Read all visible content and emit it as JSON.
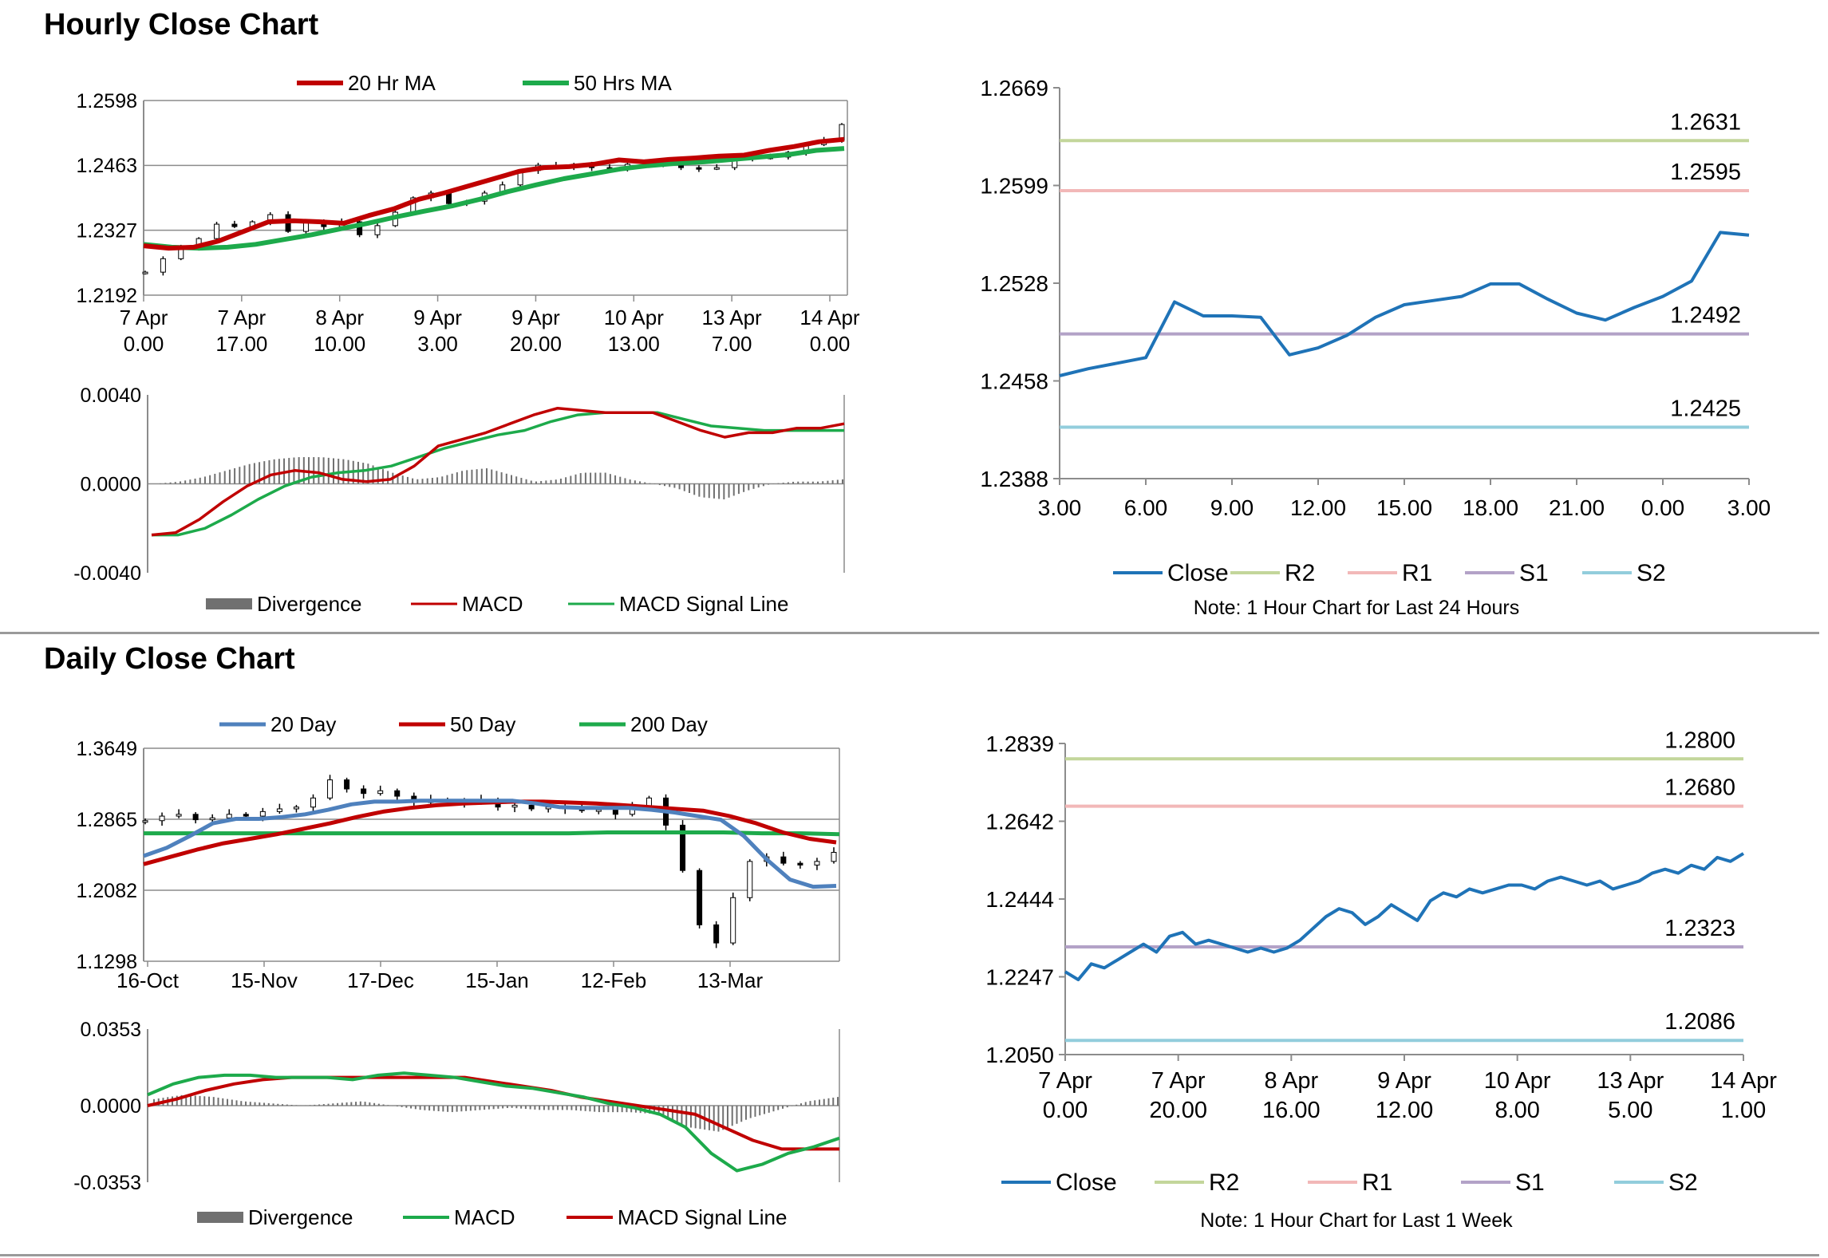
{
  "sections": {
    "hourly_title": "Hourly Close Chart",
    "daily_title": "Daily Close Chart"
  },
  "colors": {
    "red": "#c00000",
    "green": "#1daa4b",
    "blue": "#4f81bd",
    "close": "#1f73b7",
    "r2": "#c3d69b",
    "r1": "#f2b8b8",
    "s1": "#b3a2c7",
    "s2": "#92cddc",
    "divergence": "#707070",
    "grid": "#8c8c8c"
  },
  "chart_data": [
    {
      "id": "hourly_price",
      "type": "line",
      "legend": [
        {
          "name": "20 Hr MA",
          "color": "#c00000"
        },
        {
          "name": "50 Hrs MA",
          "color": "#1daa4b"
        }
      ],
      "y_ticks": [
        "1.2598",
        "1.2463",
        "1.2327",
        "1.2192"
      ],
      "ylim": [
        1.2192,
        1.2598
      ],
      "x_ticks": [
        {
          "l1": "7 Apr",
          "l2": "0.00"
        },
        {
          "l1": "7 Apr",
          "l2": "17.00"
        },
        {
          "l1": "8 Apr",
          "l2": "10.00"
        },
        {
          "l1": "9 Apr",
          "l2": "3.00"
        },
        {
          "l1": "9 Apr",
          "l2": "20.00"
        },
        {
          "l1": "10 Apr",
          "l2": "13.00"
        },
        {
          "l1": "13 Apr",
          "l2": "7.00"
        },
        {
          "l1": "14 Apr",
          "l2": "0.00"
        }
      ],
      "close": [
        1.224,
        1.2268,
        1.229,
        1.231,
        1.234,
        1.2335,
        1.2345,
        1.236,
        1.2325,
        1.2345,
        1.2335,
        1.2345,
        1.2318,
        1.2337,
        1.2365,
        1.2395,
        1.2405,
        1.2383,
        1.2388,
        1.2405,
        1.2422,
        1.2452,
        1.2463,
        1.2458,
        1.2465,
        1.2458,
        1.2455,
        1.2465,
        1.247,
        1.2462,
        1.2458,
        1.2456,
        1.2458,
        1.2485,
        1.2478,
        1.248,
        1.249,
        1.2506,
        1.2515,
        1.2548
      ],
      "ma20": [
        1.2295,
        1.229,
        1.2292,
        1.2305,
        1.2325,
        1.2345,
        1.2347,
        1.2345,
        1.2342,
        1.2358,
        1.2372,
        1.2392,
        1.2405,
        1.242,
        1.2435,
        1.245,
        1.2458,
        1.246,
        1.2465,
        1.2474,
        1.247,
        1.2475,
        1.2478,
        1.2482,
        1.2484,
        1.2494,
        1.2502,
        1.2512,
        1.2517
      ],
      "ma50": [
        1.2298,
        1.2292,
        1.229,
        1.2292,
        1.2298,
        1.2308,
        1.2318,
        1.233,
        1.2342,
        1.2355,
        1.2367,
        1.2378,
        1.2392,
        1.2408,
        1.2422,
        1.2435,
        1.2445,
        1.2455,
        1.2462,
        1.2467,
        1.247,
        1.2475,
        1.248,
        1.2485,
        1.2494,
        1.2498
      ]
    },
    {
      "id": "hourly_macd",
      "type": "line",
      "legend": [
        {
          "name": "Divergence",
          "color": "#707070"
        },
        {
          "name": "MACD",
          "color": "#c00000"
        },
        {
          "name": "MACD Signal Line",
          "color": "#1daa4b"
        }
      ],
      "y_ticks": [
        "0.0040",
        "0.0000",
        "-0.0040"
      ],
      "ylim": [
        -0.004,
        0.004
      ],
      "macd": [
        -0.0023,
        -0.0022,
        -0.0016,
        -0.0008,
        -0.0001,
        0.0004,
        0.0006,
        0.0005,
        0.0002,
        0.0001,
        0.0002,
        0.0008,
        0.0017,
        0.002,
        0.0023,
        0.0027,
        0.0031,
        0.0034,
        0.0033,
        0.0032,
        0.0032,
        0.0032,
        0.0028,
        0.0024,
        0.0021,
        0.0023,
        0.0023,
        0.0025,
        0.0025,
        0.0027
      ],
      "signal": [
        -0.0023,
        -0.0023,
        -0.002,
        -0.0014,
        -0.0007,
        -0.0001,
        0.0003,
        0.0005,
        0.0006,
        0.0008,
        0.0012,
        0.0016,
        0.0019,
        0.0022,
        0.0024,
        0.0028,
        0.0031,
        0.0032,
        0.0032,
        0.0032,
        0.0029,
        0.0026,
        0.0025,
        0.0024,
        0.0024,
        0.0024,
        0.0024
      ],
      "divergence": [
        0,
        0.0001,
        0.0003,
        0.0006,
        0.0009,
        0.0011,
        0.0012,
        0.0012,
        0.0011,
        0.0009,
        0.0005,
        0.0002,
        0.0003,
        0.0006,
        0.0007,
        0.0004,
        0.0001,
        0.0002,
        0.0005,
        0.0005,
        0.0002,
        0,
        -0.0002,
        -0.0006,
        -0.0007,
        -0.0003,
        0,
        0.0001,
        0.0001,
        0.0002
      ]
    },
    {
      "id": "hourly_close_24h",
      "type": "line",
      "y_ticks": [
        "1.2669",
        "1.2599",
        "1.2528",
        "1.2458",
        "1.2388"
      ],
      "ylim": [
        1.2388,
        1.2669
      ],
      "x_ticks": [
        "3.00",
        "6.00",
        "9.00",
        "12.00",
        "15.00",
        "18.00",
        "21.00",
        "0.00",
        "3.00"
      ],
      "levels": [
        {
          "key": "R2",
          "value": 1.2631,
          "label": "1.2631"
        },
        {
          "key": "R1",
          "value": 1.2595,
          "label": "1.2595"
        },
        {
          "key": "S1",
          "value": 1.2492,
          "label": "1.2492"
        },
        {
          "key": "S2",
          "value": 1.2425,
          "label": "1.2425"
        }
      ],
      "close": [
        1.2462,
        1.2467,
        1.2471,
        1.2475,
        1.2515,
        1.2505,
        1.2505,
        1.2504,
        1.2477,
        1.2482,
        1.2491,
        1.2504,
        1.2513,
        1.2516,
        1.2519,
        1.2528,
        1.2528,
        1.2517,
        1.2507,
        1.2502,
        1.2511,
        1.2519,
        1.253,
        1.2565,
        1.2563
      ],
      "legend": [
        "Close",
        "R2",
        "R1",
        "S1",
        "S2"
      ],
      "note": "Note: 1 Hour Chart for Last 24 Hours"
    },
    {
      "id": "daily_price",
      "type": "line",
      "legend": [
        {
          "name": "20 Day",
          "color": "#4f81bd"
        },
        {
          "name": "50 Day",
          "color": "#c00000"
        },
        {
          "name": "200 Day",
          "color": "#1daa4b"
        }
      ],
      "y_ticks": [
        "1.3649",
        "1.2865",
        "1.2082",
        "1.1298"
      ],
      "ylim": [
        1.1298,
        1.3649
      ],
      "x_ticks": [
        "16-Oct",
        "15-Nov",
        "17-Dec",
        "15-Jan",
        "12-Feb",
        "13-Mar"
      ],
      "close": [
        1.285,
        1.29,
        1.292,
        1.286,
        1.288,
        1.292,
        1.29,
        1.295,
        1.298,
        1.3,
        1.31,
        1.33,
        1.32,
        1.315,
        1.318,
        1.312,
        1.305,
        1.308,
        1.306,
        1.305,
        1.308,
        1.3,
        1.302,
        1.298,
        1.3,
        1.298,
        1.296,
        1.297,
        1.292,
        1.3,
        1.31,
        1.28,
        1.23,
        1.17,
        1.15,
        1.2,
        1.24,
        1.245,
        1.238,
        1.236,
        1.24,
        1.25
      ],
      "ma20": [
        1.246,
        1.255,
        1.268,
        1.282,
        1.287,
        1.287,
        1.289,
        1.292,
        1.297,
        1.303,
        1.306,
        1.306,
        1.307,
        1.307,
        1.307,
        1.307,
        1.307,
        1.304,
        1.3,
        1.299,
        1.299,
        1.299,
        1.297,
        1.294,
        1.29,
        1.286,
        1.268,
        1.242,
        1.22,
        1.212,
        1.213
      ],
      "ma50": [
        1.237,
        1.245,
        1.253,
        1.26,
        1.265,
        1.27,
        1.276,
        1.282,
        1.289,
        1.295,
        1.299,
        1.302,
        1.304,
        1.305,
        1.306,
        1.306,
        1.305,
        1.304,
        1.302,
        1.3,
        1.298,
        1.296,
        1.29,
        1.282,
        1.272,
        1.265,
        1.261
      ],
      "ma200": [
        1.271,
        1.271,
        1.271,
        1.271,
        1.271,
        1.271,
        1.271,
        1.271,
        1.271,
        1.271,
        1.271,
        1.271,
        1.272,
        1.272,
        1.272,
        1.272,
        1.271,
        1.271,
        1.27
      ]
    },
    {
      "id": "daily_macd",
      "type": "line",
      "legend": [
        {
          "name": "Divergence",
          "color": "#707070"
        },
        {
          "name": "MACD",
          "color": "#1daa4b"
        },
        {
          "name": "MACD Signal Line",
          "color": "#c00000"
        }
      ],
      "y_ticks": [
        "0.0353",
        "0.0000",
        "-0.0353"
      ],
      "ylim": [
        -0.0353,
        0.0353
      ],
      "macd": [
        0.005,
        0.01,
        0.013,
        0.014,
        0.014,
        0.013,
        0.013,
        0.013,
        0.012,
        0.014,
        0.015,
        0.014,
        0.013,
        0.011,
        0.009,
        0.008,
        0.006,
        0.004,
        0.001,
        -0.001,
        -0.004,
        -0.01,
        -0.022,
        -0.03,
        -0.027,
        -0.022,
        -0.019,
        -0.015
      ],
      "signal": [
        0,
        0.003,
        0.007,
        0.01,
        0.012,
        0.013,
        0.013,
        0.013,
        0.013,
        0.013,
        0.013,
        0.013,
        0.011,
        0.009,
        0.007,
        0.004,
        0.002,
        0,
        -0.002,
        -0.004,
        -0.01,
        -0.016,
        -0.02,
        -0.02,
        -0.02
      ],
      "divergence": [
        0.003,
        0.005,
        0.004,
        0.002,
        0.001,
        0,
        0.001,
        0.002,
        0,
        -0.002,
        -0.003,
        -0.002,
        -0.001,
        -0.002,
        -0.002,
        -0.003,
        -0.003,
        -0.004,
        -0.01,
        -0.012,
        -0.006,
        -0.002,
        0.002,
        0.004
      ]
    },
    {
      "id": "hourly_close_week",
      "type": "line",
      "y_ticks": [
        "1.2839",
        "1.2642",
        "1.2444",
        "1.2247",
        "1.2050"
      ],
      "ylim": [
        1.205,
        1.2839
      ],
      "x_ticks": [
        {
          "l1": "7 Apr",
          "l2": "0.00"
        },
        {
          "l1": "7 Apr",
          "l2": "20.00"
        },
        {
          "l1": "8 Apr",
          "l2": "16.00"
        },
        {
          "l1": "9 Apr",
          "l2": "12.00"
        },
        {
          "l1": "10 Apr",
          "l2": "8.00"
        },
        {
          "l1": "13 Apr",
          "l2": "5.00"
        },
        {
          "l1": "14 Apr",
          "l2": "1.00"
        }
      ],
      "levels": [
        {
          "key": "R2",
          "value": 1.28,
          "label": "1.2800"
        },
        {
          "key": "R1",
          "value": 1.268,
          "label": "1.2680"
        },
        {
          "key": "S1",
          "value": 1.2323,
          "label": "1.2323"
        },
        {
          "key": "S2",
          "value": 1.2086,
          "label": "1.2086"
        }
      ],
      "close": [
        1.226,
        1.224,
        1.228,
        1.227,
        1.229,
        1.231,
        1.233,
        1.231,
        1.235,
        1.236,
        1.233,
        1.234,
        1.233,
        1.232,
        1.231,
        1.232,
        1.231,
        1.232,
        1.234,
        1.237,
        1.24,
        1.242,
        1.241,
        1.238,
        1.24,
        1.243,
        1.241,
        1.239,
        1.244,
        1.246,
        1.245,
        1.247,
        1.246,
        1.247,
        1.248,
        1.248,
        1.247,
        1.249,
        1.25,
        1.249,
        1.248,
        1.249,
        1.247,
        1.248,
        1.249,
        1.251,
        1.252,
        1.251,
        1.253,
        1.252,
        1.255,
        1.254,
        1.256
      ],
      "legend": [
        "Close",
        "R2",
        "R1",
        "S1",
        "S2"
      ],
      "note": "Note: 1 Hour Chart for Last 1 Week"
    }
  ]
}
